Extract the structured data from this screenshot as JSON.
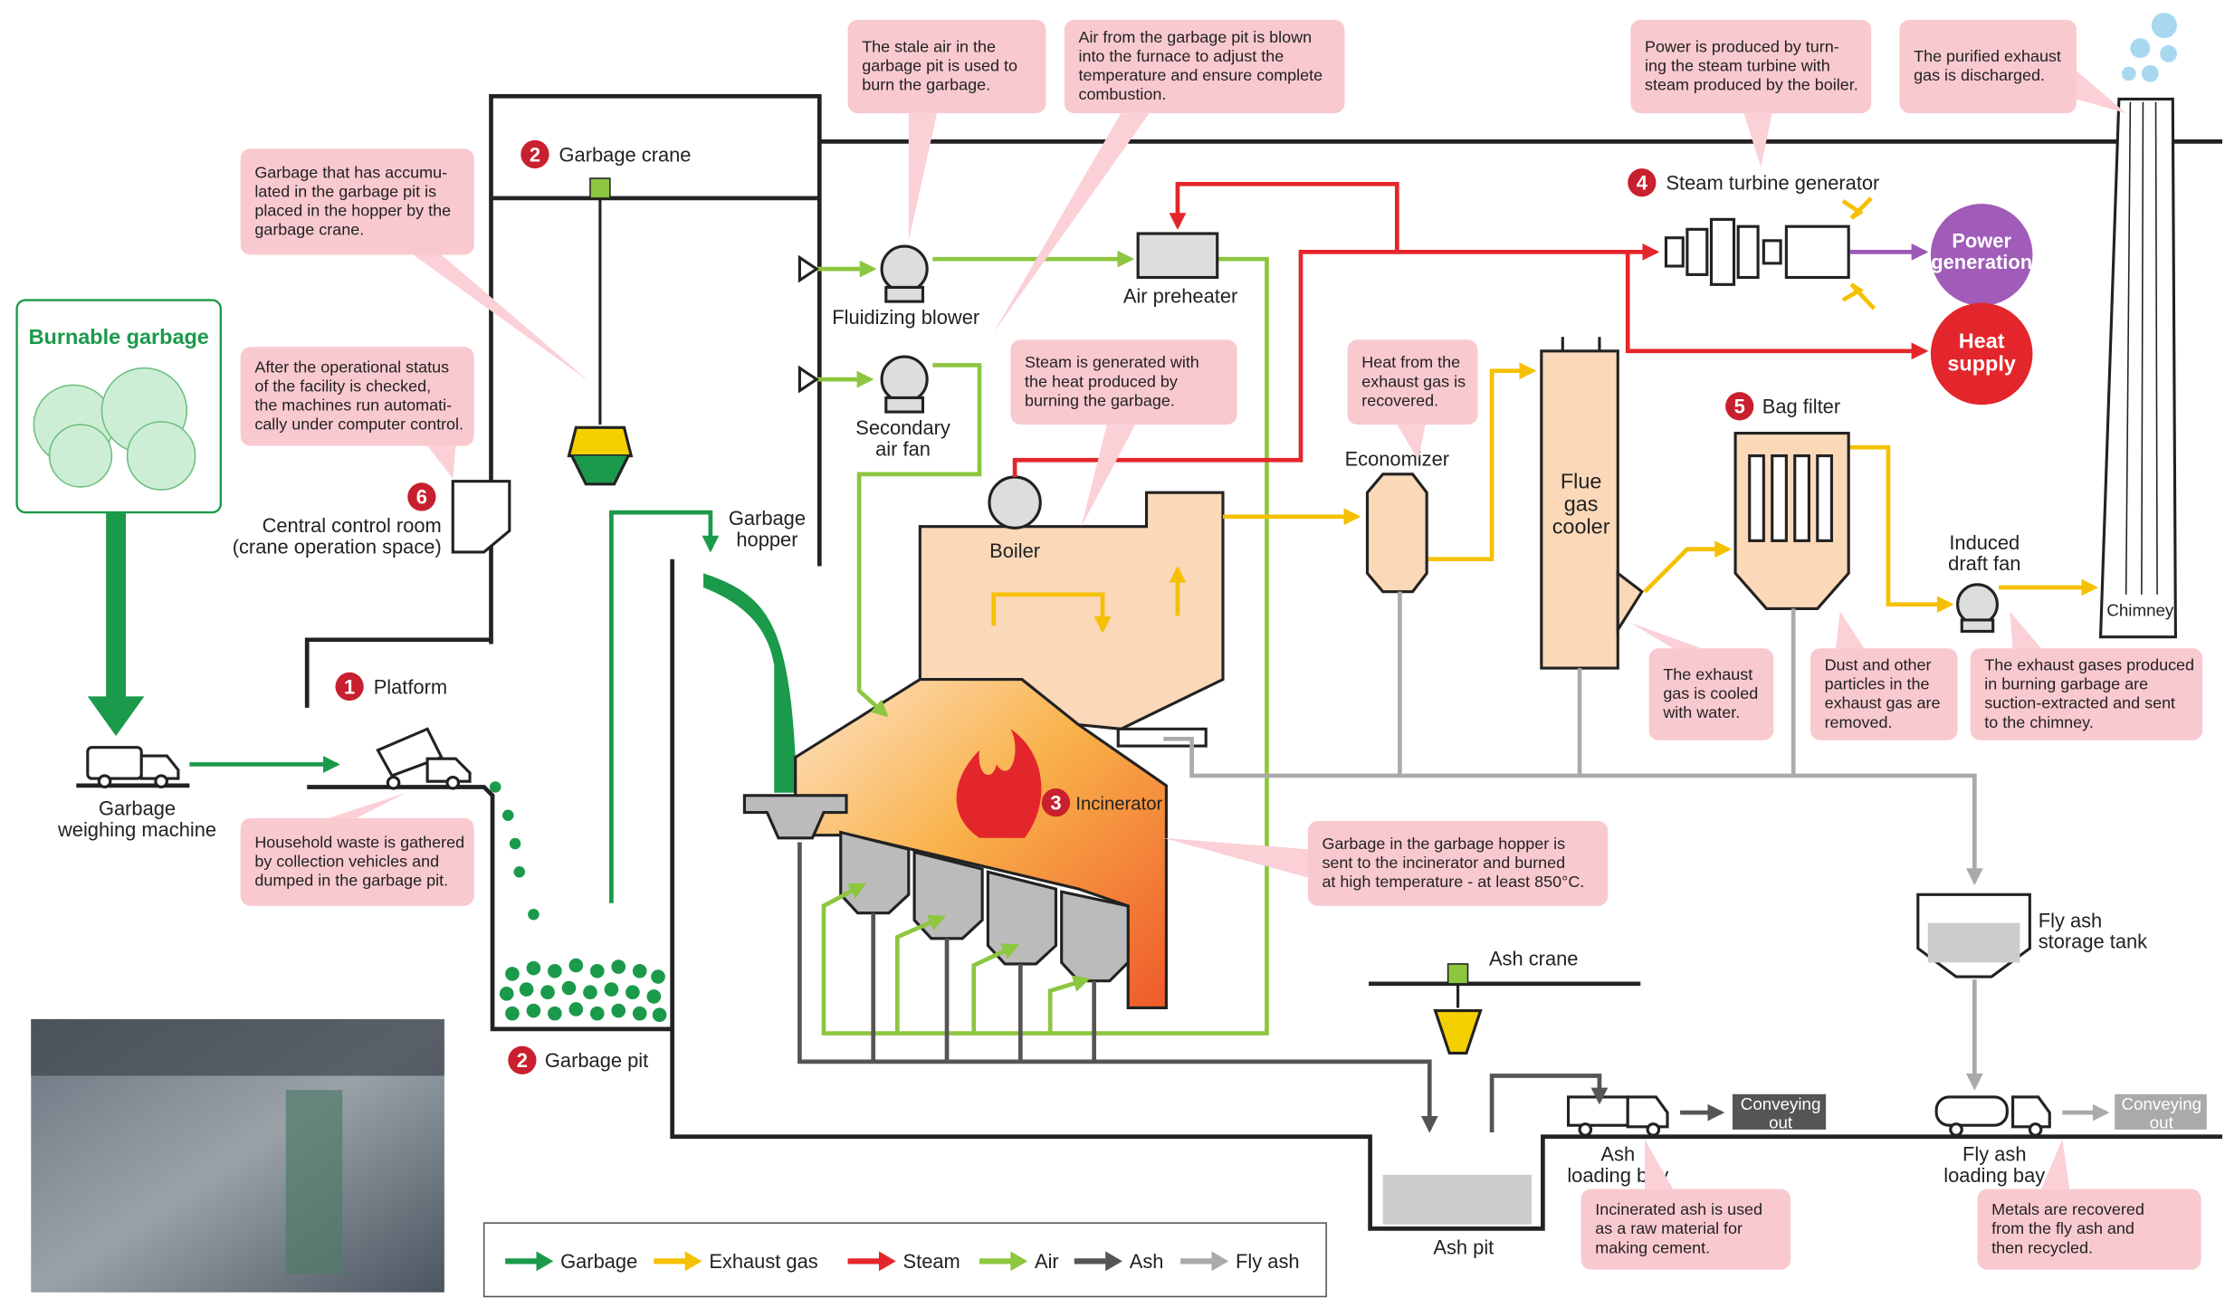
{
  "burnable_garbage": "Burnable garbage",
  "steps": [
    {
      "number": "1",
      "label": [
        "Platform"
      ]
    },
    {
      "number": "2",
      "label": [
        "Garbage crane"
      ]
    },
    {
      "number": "2",
      "label": [
        "Garbage pit"
      ]
    },
    {
      "number": "3",
      "label": [
        "Incinerator"
      ]
    },
    {
      "number": "4",
      "label": [
        "Steam turbine generator"
      ]
    },
    {
      "number": "5",
      "label": [
        "Bag filter"
      ]
    },
    {
      "number": "6",
      "label": [
        "Central control room",
        "(crane operation space)"
      ]
    }
  ],
  "components": [
    {
      "lines": [
        "Garbage",
        "weighing machine"
      ]
    },
    {
      "lines": [
        "Fluidizing blower"
      ]
    },
    {
      "lines": [
        "Secondary",
        "air fan"
      ]
    },
    {
      "lines": [
        "Air preheater"
      ]
    },
    {
      "lines": [
        "Garbage",
        "hopper"
      ]
    },
    {
      "lines": [
        "Boiler"
      ]
    },
    {
      "lines": [
        "Economizer"
      ]
    },
    {
      "lines": [
        "Flue",
        "gas",
        "cooler"
      ]
    },
    {
      "lines": [
        "Power",
        "generation"
      ]
    },
    {
      "lines": [
        "Heat",
        "supply"
      ]
    },
    {
      "lines": [
        "Induced",
        "draft fan"
      ]
    },
    {
      "lines": [
        "Chimney"
      ]
    },
    {
      "lines": [
        "Fly ash",
        "storage tank"
      ]
    },
    {
      "lines": [
        "Ash crane"
      ]
    },
    {
      "lines": [
        "Ash pit"
      ]
    },
    {
      "lines": [
        "Ash",
        "loading bay"
      ]
    },
    {
      "lines": [
        "Fly ash",
        "loading bay"
      ]
    },
    {
      "lines": [
        "Conveying",
        "out"
      ]
    },
    {
      "lines": [
        "Conveying",
        "out"
      ]
    }
  ],
  "callouts": [
    {
      "lines": [
        "Garbage that has accumu-",
        "lated in the garbage pit is",
        "placed in the hopper by the",
        "garbage crane."
      ]
    },
    {
      "lines": [
        "After the operational status",
        "of the facility is checked,",
        "the machines run automati-",
        "cally under computer control."
      ]
    },
    {
      "lines": [
        "Household waste is gathered",
        "by collection vehicles and",
        "dumped in the garbage pit."
      ]
    },
    {
      "lines": [
        "The stale air in the",
        "garbage pit is used to",
        "burn the garbage."
      ]
    },
    {
      "lines": [
        "Air from the garbage pit is blown",
        "into the furnace to adjust the",
        "temperature and ensure complete",
        "combustion."
      ]
    },
    {
      "lines": [
        "Steam is generated with",
        "the heat produced by",
        "burning the garbage."
      ]
    },
    {
      "lines": [
        "Heat from the",
        "exhaust gas is",
        "recovered."
      ]
    },
    {
      "lines": [
        "Power is produced by turn-",
        "ing the steam turbine with",
        "steam produced by the boiler."
      ]
    },
    {
      "lines": [
        "The purified exhaust",
        "gas is discharged."
      ]
    },
    {
      "lines": [
        "Garbage in the garbage hopper is",
        "sent to the incinerator and burned",
        "at high temperature - at least 850°C."
      ]
    },
    {
      "lines": [
        "The exhaust",
        "gas is cooled",
        "with water."
      ]
    },
    {
      "lines": [
        "Dust and other",
        "particles in the",
        "exhaust gas are",
        "removed."
      ]
    },
    {
      "lines": [
        "The exhaust gases produced",
        "in burning garbage are",
        "suction-extracted and sent",
        "to the chimney."
      ]
    },
    {
      "lines": [
        "Incinerated ash is used",
        "as a raw material for",
        "making cement."
      ]
    },
    {
      "lines": [
        "Metals are recovered",
        "from the fly ash and",
        "then recycled."
      ]
    }
  ],
  "legend": [
    {
      "label": "Garbage",
      "color": "#1a9a4a"
    },
    {
      "label": "Exhaust gas",
      "color": "#f5c000"
    },
    {
      "label": "Steam",
      "color": "#e3262b"
    },
    {
      "label": "Air",
      "color": "#8dc63f"
    },
    {
      "label": "Ash",
      "color": "#555555"
    },
    {
      "label": "Fly ash",
      "color": "#aaaaaa"
    }
  ]
}
